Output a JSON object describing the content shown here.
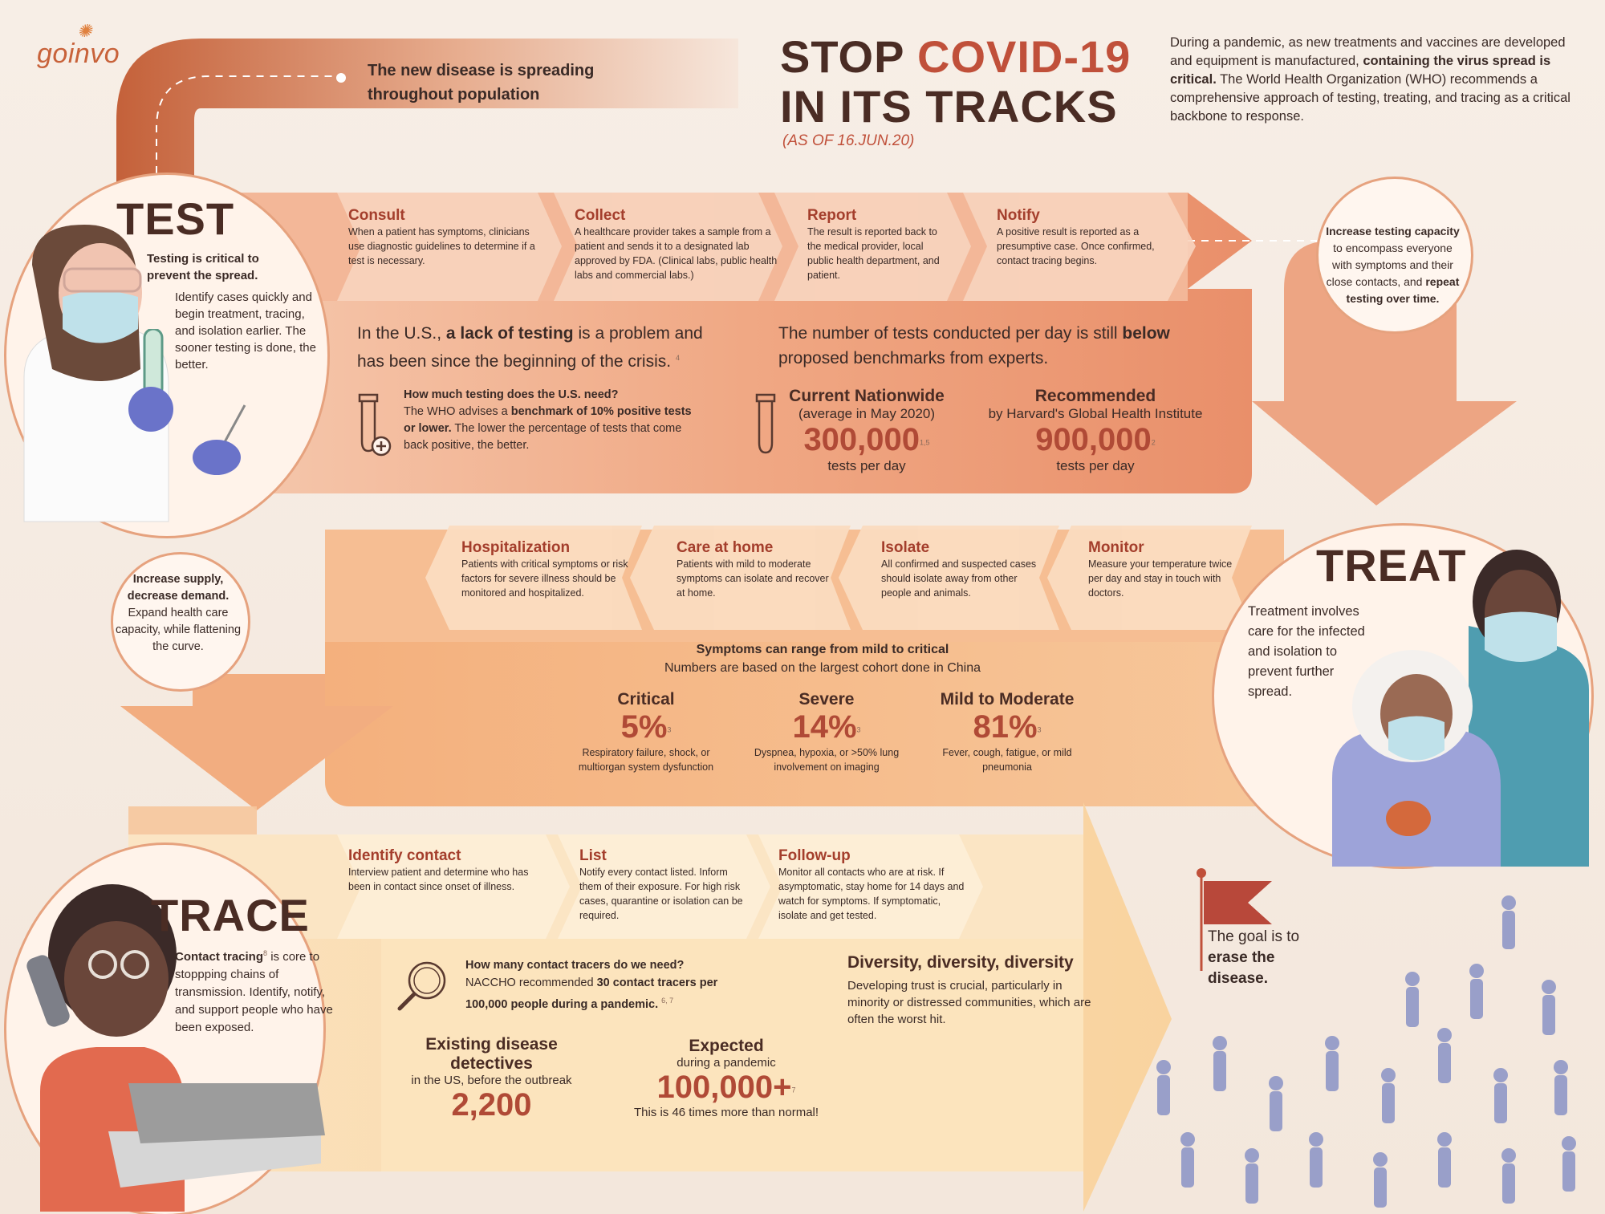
{
  "brand": {
    "logo": "goinvo"
  },
  "header": {
    "title_line1_a": "STOP ",
    "title_line1_b": "COVID-19",
    "title_line2": "IN ITS TRACKS",
    "as_of": "(AS OF 16.JUN.20)",
    "intro_a": "During a pandemic, as new treatments and vaccines are developed and equipment is manufactured, ",
    "intro_b": "containing the virus spread is critical.",
    "intro_c": " The World Health Organization (WHO) recommends a comprehensive approach of testing, treating, and tracing as a critical backbone to response."
  },
  "spread_note": "The new disease is spreading throughout population",
  "test": {
    "title": "TEST",
    "lead": "Testing is critical to prevent  the spread.",
    "body": "Identify cases quickly and begin treatment, tracing, and isolation earlier. The sooner testing is done, the better.",
    "steps": [
      {
        "name": "Consult",
        "text": "When a patient has symptoms, clinicians use diagnostic guidelines to determine if a test is necessary."
      },
      {
        "name": "Collect",
        "text": "A healthcare provider takes a sample from a patient and sends it to a designated lab approved by FDA. (Clinical labs, public health labs and commercial labs.)"
      },
      {
        "name": "Report",
        "text": "The result is reported back to the medical provider, local public health department, and patient."
      },
      {
        "name": "Notify",
        "text": "A positive result is reported as a presumptive case. Once confirmed, contact tracing begins."
      }
    ],
    "capacity_a": "Increase testing capacity",
    "capacity_b": " to encompass everyone with symptoms and their close contacts, and ",
    "capacity_c": "repeat testing over time.",
    "lack_a": "In the U.S., ",
    "lack_b": "a lack of testing",
    "lack_c": " is a problem and has been since the beginning of the crisis.",
    "lack_ref": "4",
    "need_q": "How much testing does the U.S. need?",
    "need_a": "The WHO advises a ",
    "need_b": "benchmark of 10% positive tests or lower.",
    "need_c": " The lower the percentage of tests that come back positive, the better.",
    "below_a": "The number of tests conducted per day is still ",
    "below_b": "below",
    "below_c": " proposed benchmarks from experts.",
    "current": {
      "label": "Current Nationwide",
      "sub": "(average in May 2020)",
      "value": "300,000",
      "ref": "1,5",
      "unit": "tests per day"
    },
    "recommended": {
      "label": "Recommended",
      "sub": "by Harvard's Global Health Institute",
      "value": "900,000",
      "ref": "2",
      "unit": "tests per day"
    }
  },
  "treat": {
    "title": "TREAT",
    "body": "Treatment involves care for the infected and isolation to prevent further spread.",
    "steps": [
      {
        "name": "Monitor",
        "text": "Measure your temperature twice per day and stay in touch with doctors."
      },
      {
        "name": "Isolate",
        "text": "All confirmed and suspected cases should isolate away from other people and animals."
      },
      {
        "name": "Care at home",
        "text": "Patients with mild to moderate symptoms can isolate and recover at home."
      },
      {
        "name": "Hospitalization",
        "text": "Patients with critical symptoms or risk factors for severe illness should be monitored and hospitalized."
      }
    ],
    "supply_a": "Increase supply, decrease demand.",
    "supply_b": " Expand health care capacity, while flattening the curve.",
    "sym_title": "Symptoms can range from mild to critical",
    "sym_sub": "Numbers are  based on the largest cohort done in China",
    "symptoms": [
      {
        "label": "Critical",
        "value": "5%",
        "ref": "3",
        "text": "Respiratory failure, shock, or multiorgan system dysfunction"
      },
      {
        "label": "Severe",
        "value": "14%",
        "ref": "3",
        "text": "Dyspnea, hypoxia, or >50% lung involvement on imaging"
      },
      {
        "label": "Mild to Moderate",
        "value": "81%",
        "ref": "3",
        "text": "Fever, cough, fatigue, or mild pneumonia"
      }
    ]
  },
  "trace": {
    "title": "TRACE",
    "lead": "Contact tracing",
    "lead_ref": "8",
    "body": " is core to stoppping chains of transmission. Identify, notify, and support people who have been exposed.",
    "steps": [
      {
        "name": "Identify contact",
        "text": "Interview patient and determine who has been in contact since onset of illness."
      },
      {
        "name": "List",
        "text": "Notify every contact listed. Inform them of their exposure. For high risk cases, quarantine or isolation can be required."
      },
      {
        "name": "Follow-up",
        "text": "Monitor all contacts who are at risk. If asymptomatic, stay home for 14 days and watch for symptoms. If symptomatic, isolate and get tested."
      }
    ],
    "need_q": "How many contact tracers do we need?",
    "need_a": "NACCHO recommended ",
    "need_b": "30 contact tracers per 100,000 people during a pandemic.",
    "need_ref": "6, 7",
    "existing": {
      "label": "Existing disease detectives",
      "sub": "in the US, before the outbreak",
      "value": "2,200"
    },
    "expected": {
      "label": "Expected",
      "sub": "during a pandemic",
      "value": "100,000+",
      "ref": "7",
      "note": "This is 46 times more than normal!"
    },
    "div_title": "Diversity, diversity, diversity",
    "div_text": "Developing trust is crucial, particularly in minority or distressed communities, which are often the worst hit."
  },
  "goal": {
    "a": "The goal is to ",
    "b": "erase the disease."
  },
  "colors": {
    "accent": "#c0503a",
    "band_test": "#ec9d78",
    "band_treat": "#f4b27f",
    "band_trace": "#f8d7a8",
    "dark": "#4a2c24"
  }
}
